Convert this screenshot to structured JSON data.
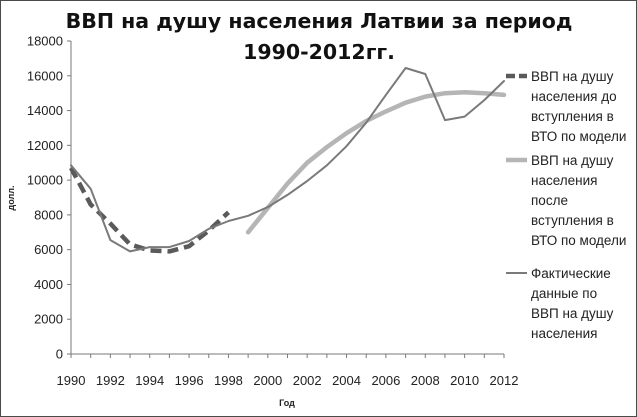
{
  "chart_data": {
    "type": "line",
    "title_lines": [
      "ВВП на душу населения Латвии за период",
      "1990-2012гг."
    ],
    "xlabel": "Год",
    "ylabel": "долл.",
    "ylim": [
      0,
      18000
    ],
    "xlim": [
      1990,
      2012
    ],
    "y_ticks": [
      "0",
      "2000",
      "4000",
      "6000",
      "8000",
      "10000",
      "12000",
      "14000",
      "16000",
      "18000"
    ],
    "x_ticks": [
      "1990",
      "1992",
      "1994",
      "1996",
      "1998",
      "2000",
      "2002",
      "2004",
      "2006",
      "2008",
      "2010",
      "2012"
    ],
    "grid": false,
    "legend_position": "right",
    "series": [
      {
        "name": "ВВП на душу населения до вступления в ВТО по модели",
        "legend_lines": [
          "ВВП на душу",
          "населения до",
          "вступления в",
          "ВТО по модели"
        ],
        "color": "#5a5a5a",
        "style": "dashed",
        "x": [
          1990,
          1991,
          1992,
          1993,
          1994,
          1995,
          1996,
          1997,
          1998
        ],
        "y": [
          10700,
          8600,
          7500,
          6300,
          5950,
          5900,
          6200,
          7100,
          8150
        ]
      },
      {
        "name": "ВВП на душу населения после вступления в ВТО по модели",
        "legend_lines": [
          "ВВП на душу",
          "населения",
          "после",
          "вступления в",
          "ВТО по модели"
        ],
        "color": "#b5b5b5",
        "style": "solid-thick",
        "x": [
          1999,
          2000,
          2001,
          2002,
          2003,
          2004,
          2005,
          2006,
          2007,
          2008,
          2009,
          2010,
          2011,
          2012
        ],
        "y": [
          7000,
          8400,
          9800,
          11000,
          11900,
          12700,
          13400,
          13950,
          14450,
          14800,
          15000,
          15050,
          15000,
          14900
        ]
      },
      {
        "name": "Фактические данные по ВВП на душу населения",
        "legend_lines": [
          "Фактические",
          "данные по",
          "ВВП на душу",
          "населения"
        ],
        "color": "#7a7a7a",
        "style": "solid",
        "x": [
          1990,
          1991,
          1992,
          1993,
          1994,
          1995,
          1996,
          1997,
          1998,
          1999,
          2000,
          2001,
          2002,
          2003,
          2004,
          2005,
          2006,
          2007,
          2008,
          2009,
          2010,
          2011,
          2012
        ],
        "y": [
          10850,
          9500,
          6550,
          5900,
          6150,
          6150,
          6500,
          7200,
          7650,
          7950,
          8450,
          9150,
          9950,
          10850,
          11950,
          13300,
          14900,
          16450,
          16100,
          13450,
          13650,
          14600,
          15700
        ]
      }
    ]
  }
}
